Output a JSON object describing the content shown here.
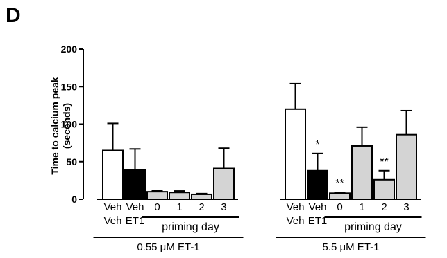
{
  "panel_letter": "D",
  "chart_data": {
    "type": "bar",
    "ylabel_line1": "Time to calcium peak",
    "ylabel_line2": "(seconds)",
    "ylim": [
      0,
      200
    ],
    "yticks": [
      "0",
      "50",
      "100",
      "150",
      "200"
    ],
    "grid": false,
    "groups": [
      {
        "label": "0.55 μM ET-1",
        "subgroup_label": "priming day",
        "bars": [
          {
            "top_label": "Veh",
            "bottom_label": "Veh",
            "value": 65,
            "error": 36,
            "fill": "white",
            "sig": ""
          },
          {
            "top_label": "Veh",
            "bottom_label": "ET1",
            "value": 39,
            "error": 28,
            "fill": "black",
            "sig": ""
          },
          {
            "top_label": "0",
            "bottom_label": "",
            "value": 10,
            "error": 1.5,
            "fill": "gray",
            "sig": ""
          },
          {
            "top_label": "1",
            "bottom_label": "",
            "value": 9,
            "error": 2,
            "fill": "gray",
            "sig": ""
          },
          {
            "top_label": "2",
            "bottom_label": "",
            "value": 6.5,
            "error": 1,
            "fill": "gray",
            "sig": ""
          },
          {
            "top_label": "3",
            "bottom_label": "",
            "value": 41,
            "error": 27,
            "fill": "gray",
            "sig": ""
          }
        ]
      },
      {
        "label": "5.5 μM ET-1",
        "subgroup_label": "priming day",
        "bars": [
          {
            "top_label": "Veh",
            "bottom_label": "Veh",
            "value": 120,
            "error": 34,
            "fill": "white",
            "sig": ""
          },
          {
            "top_label": "Veh",
            "bottom_label": "ET1",
            "value": 38,
            "error": 23,
            "fill": "black",
            "sig": "*"
          },
          {
            "top_label": "0",
            "bottom_label": "",
            "value": 8,
            "error": 1,
            "fill": "gray",
            "sig": "**"
          },
          {
            "top_label": "1",
            "bottom_label": "",
            "value": 71,
            "error": 25,
            "fill": "gray",
            "sig": ""
          },
          {
            "top_label": "2",
            "bottom_label": "",
            "value": 26,
            "error": 12,
            "fill": "gray",
            "sig": "**"
          },
          {
            "top_label": "3",
            "bottom_label": "",
            "value": 86,
            "error": 32,
            "fill": "gray",
            "sig": ""
          }
        ]
      }
    ],
    "colors": {
      "white": "#ffffff",
      "black": "#000000",
      "gray": "#d4d4d4"
    }
  }
}
